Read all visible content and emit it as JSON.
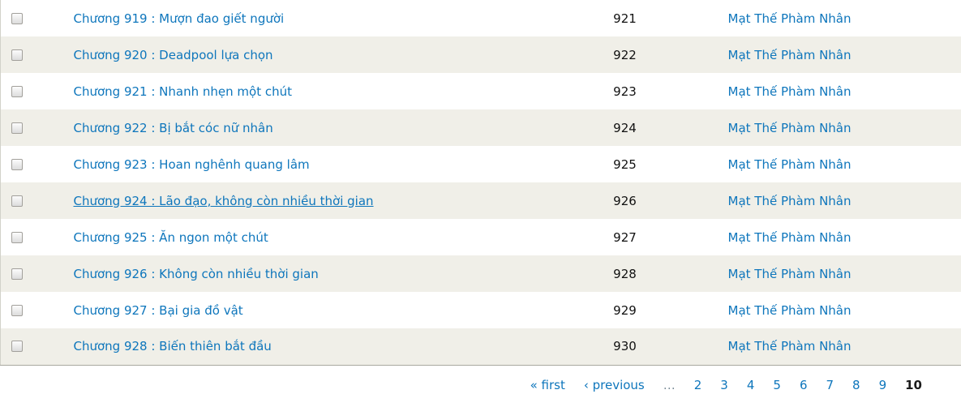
{
  "table": {
    "rows": [
      {
        "title": "Chương 919 : Mượn đao giết người",
        "number": "921",
        "book": "Mạt Thế Phàm Nhân",
        "underlined": false
      },
      {
        "title": "Chương 920 : Deadpool lựa chọn",
        "number": "922",
        "book": "Mạt Thế Phàm Nhân",
        "underlined": false
      },
      {
        "title": "Chương 921 : Nhanh nhẹn một chút",
        "number": "923",
        "book": "Mạt Thế Phàm Nhân",
        "underlined": false
      },
      {
        "title": "Chương 922 : Bị bắt cóc nữ nhân",
        "number": "924",
        "book": "Mạt Thế Phàm Nhân",
        "underlined": false
      },
      {
        "title": "Chương 923 : Hoan nghênh quang lâm",
        "number": "925",
        "book": "Mạt Thế Phàm Nhân",
        "underlined": false
      },
      {
        "title": "Chương 924 : Lão đạo, không còn nhiều thời gian",
        "number": "926",
        "book": "Mạt Thế Phàm Nhân",
        "underlined": true
      },
      {
        "title": "Chương 925 : Ăn ngon một chút",
        "number": "927",
        "book": "Mạt Thế Phàm Nhân",
        "underlined": false
      },
      {
        "title": "Chương 926 : Không còn nhiều thời gian",
        "number": "928",
        "book": "Mạt Thế Phàm Nhân",
        "underlined": false
      },
      {
        "title": "Chương 927 : Bại gia đồ vật",
        "number": "929",
        "book": "Mạt Thế Phàm Nhân",
        "underlined": false
      },
      {
        "title": "Chương 928 : Biến thiên bắt đầu",
        "number": "930",
        "book": "Mạt Thế Phàm Nhân",
        "underlined": false
      }
    ]
  },
  "pagination": {
    "first_label": "« first",
    "previous_label": "‹ previous",
    "ellipsis": "…",
    "pages": [
      "2",
      "3",
      "4",
      "5",
      "6",
      "7",
      "8",
      "9"
    ],
    "current_page": "10"
  },
  "colors": {
    "link": "#0e76bc",
    "row_alt_background": "#f0efe8",
    "table_bottom_border": "#a8a8a0",
    "table_left_border": "#d2d2ca",
    "current_page_text": "#1c1c1c",
    "ellipsis_text": "#7e8f9b"
  }
}
